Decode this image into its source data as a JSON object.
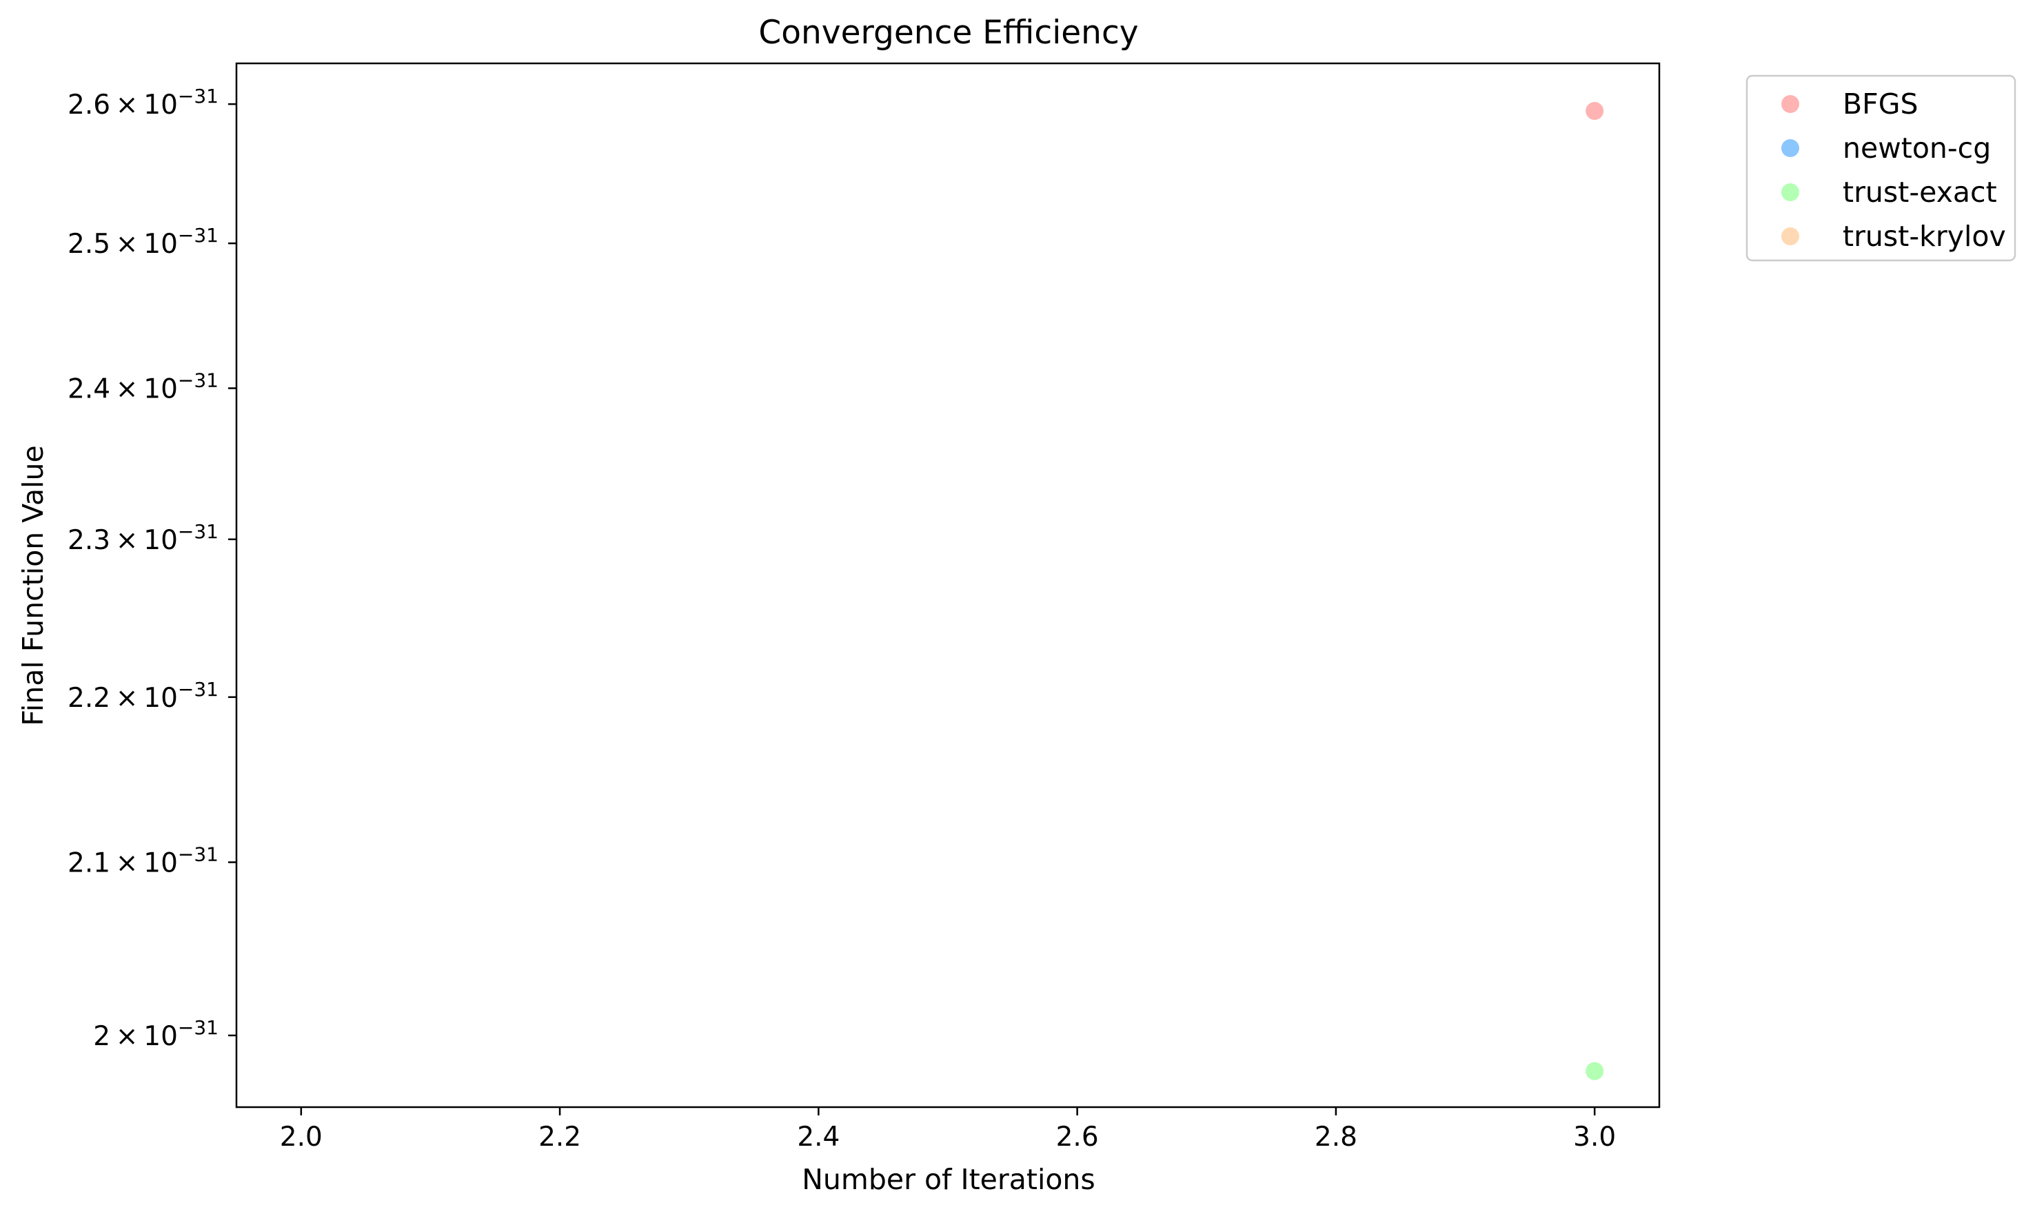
{
  "chart_data": {
    "type": "scatter",
    "title": "Convergence Efficiency",
    "xlabel": "Number of Iterations",
    "ylabel": "Final Function Value",
    "x_scale": "linear",
    "y_scale": "log",
    "xlim": [
      1.95,
      3.05
    ],
    "ylim": [
      1.96e-31,
      2.63e-31
    ],
    "x_ticks": [
      {
        "value": 2.0,
        "label": "2.0"
      },
      {
        "value": 2.2,
        "label": "2.2"
      },
      {
        "value": 2.4,
        "label": "2.4"
      },
      {
        "value": 2.6,
        "label": "2.6"
      },
      {
        "value": 2.8,
        "label": "2.8"
      },
      {
        "value": 3.0,
        "label": "3.0"
      }
    ],
    "y_ticks": [
      {
        "value": 2.6e-31,
        "mantissa": "2.6",
        "exponent": "−31"
      },
      {
        "value": 2.5e-31,
        "mantissa": "2.5",
        "exponent": "−31"
      },
      {
        "value": 2.4e-31,
        "mantissa": "2.4",
        "exponent": "−31"
      },
      {
        "value": 2.3e-31,
        "mantissa": "2.3",
        "exponent": "−31"
      },
      {
        "value": 2.2e-31,
        "mantissa": "2.2",
        "exponent": "−31"
      },
      {
        "value": 2.1e-31,
        "mantissa": "2.1",
        "exponent": "−31"
      },
      {
        "value": 2e-31,
        "mantissa": "2",
        "exponent": "−31"
      }
    ],
    "grid": false,
    "legend_position": "outside-top-right",
    "series": [
      {
        "name": "BFGS",
        "color": "#ff9999",
        "points": [
          {
            "x": 3.0,
            "y": 2.595e-31
          }
        ]
      },
      {
        "name": "newton-cg",
        "color": "#66b3ff",
        "points": []
      },
      {
        "name": "trust-exact",
        "color": "#99ff99",
        "points": [
          {
            "x": 3.0,
            "y": 1.98e-31
          }
        ]
      },
      {
        "name": "trust-krylov",
        "color": "#ffcc99",
        "points": []
      }
    ]
  }
}
